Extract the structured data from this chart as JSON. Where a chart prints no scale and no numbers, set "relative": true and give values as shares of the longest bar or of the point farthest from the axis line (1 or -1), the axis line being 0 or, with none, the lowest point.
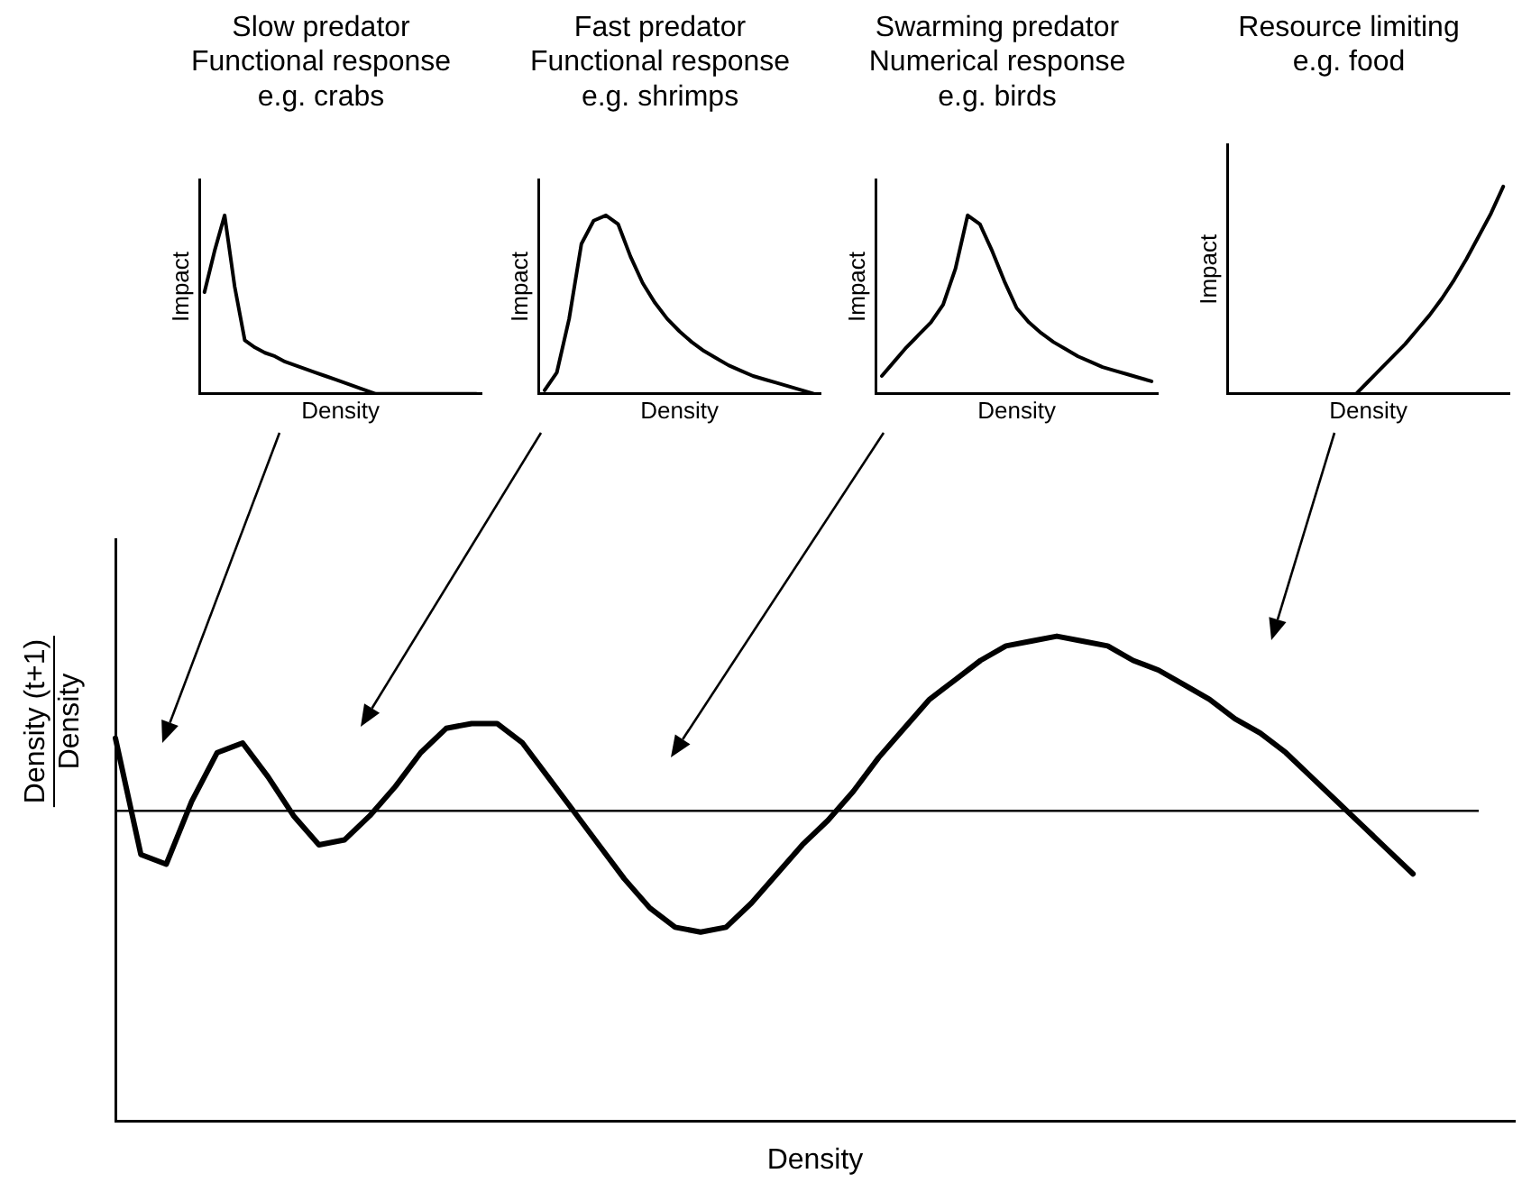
{
  "chart_data": [
    {
      "type": "line",
      "title": "Slow predator\nFunctional response\ne.g. crabs",
      "xlabel": "Density",
      "ylabel": "Impact",
      "relative": true,
      "grid": false,
      "legend": false,
      "marker": "none",
      "color": "#000000",
      "categories": [
        null,
        null,
        null,
        null,
        null,
        null,
        null,
        null,
        null,
        null,
        null,
        null,
        null,
        null,
        null,
        null,
        null,
        null,
        null,
        null,
        null,
        null,
        null,
        null,
        null,
        null,
        null,
        null
      ],
      "values": [
        0.57,
        0.8,
        1,
        0.6,
        0.3,
        0.26,
        0.23,
        0.21,
        0.18,
        0.16,
        0.14,
        0.12,
        0.1,
        0.08,
        0.06,
        0.04,
        0.02,
        0,
        0,
        0,
        0,
        0,
        0,
        0,
        0,
        0,
        0,
        0
      ]
    },
    {
      "type": "line",
      "title": "Fast predator\nFunctional response\ne.g. shrimps",
      "xlabel": "Density",
      "ylabel": "Impact",
      "relative": true,
      "grid": false,
      "legend": false,
      "marker": "none",
      "color": "#000000",
      "categories": [
        null,
        null,
        null,
        null,
        null,
        null,
        null,
        null,
        null,
        null,
        null,
        null,
        null,
        null,
        null,
        null,
        null,
        null,
        null,
        null,
        null,
        null,
        null
      ],
      "values": [
        0.02,
        0.12,
        0.42,
        0.84,
        0.97,
        1,
        0.95,
        0.77,
        0.62,
        0.51,
        0.42,
        0.35,
        0.29,
        0.24,
        0.2,
        0.16,
        0.13,
        0.1,
        0.08,
        0.06,
        0.04,
        0.02,
        0
      ]
    },
    {
      "type": "line",
      "title": "Swarming predator\nNumerical response\ne.g. birds",
      "xlabel": "Density",
      "ylabel": "Impact",
      "relative": true,
      "grid": false,
      "legend": false,
      "marker": "none",
      "color": "#000000",
      "categories": [
        null,
        null,
        null,
        null,
        null,
        null,
        null,
        null,
        null,
        null,
        null,
        null,
        null,
        null,
        null,
        null,
        null,
        null,
        null,
        null,
        null,
        null,
        null
      ],
      "values": [
        0.1,
        0.18,
        0.26,
        0.33,
        0.4,
        0.5,
        0.7,
        1,
        0.95,
        0.8,
        0.63,
        0.48,
        0.4,
        0.34,
        0.29,
        0.25,
        0.21,
        0.18,
        0.15,
        0.13,
        0.11,
        0.09,
        0.07
      ]
    },
    {
      "type": "line",
      "title": "Resource limiting\ne.g. food",
      "xlabel": "Density",
      "ylabel": "Impact",
      "relative": true,
      "grid": false,
      "legend": false,
      "marker": "none",
      "color": "#000000",
      "categories": [
        null,
        null,
        null,
        null,
        null,
        null,
        null,
        null,
        null,
        null,
        null,
        null,
        null,
        null,
        null,
        null,
        null,
        null,
        null,
        null,
        null,
        null,
        null
      ],
      "values": [
        null,
        null,
        null,
        null,
        null,
        null,
        null,
        null,
        null,
        null,
        0,
        0.06,
        0.12,
        0.18,
        0.24,
        0.31,
        0.38,
        0.46,
        0.55,
        0.65,
        0.76,
        0.87,
        1
      ]
    },
    {
      "type": "line",
      "xlabel": "Density",
      "ylabel": "Density (t+1)\nDensity",
      "relative": true,
      "grid": false,
      "legend": false,
      "marker": "none",
      "color": "#000000",
      "ref_lines": [
        {
          "axis": "y",
          "value": 0.64,
          "color": "#000000"
        }
      ],
      "categories": [
        null,
        null,
        null,
        null,
        null,
        null,
        null,
        null,
        null,
        null,
        null,
        null,
        null,
        null,
        null,
        null,
        null,
        null,
        null,
        null,
        null,
        null,
        null,
        null,
        null,
        null,
        null,
        null,
        null,
        null,
        null,
        null,
        null,
        null,
        null,
        null,
        null,
        null,
        null,
        null,
        null,
        null,
        null,
        null,
        null,
        null,
        null,
        null,
        null,
        null,
        null,
        null,
        null,
        null,
        null,
        null
      ],
      "values": [
        0.79,
        0.55,
        0.53,
        0.66,
        0.76,
        0.78,
        0.71,
        0.63,
        0.57,
        0.58,
        0.63,
        0.69,
        0.76,
        0.81,
        0.82,
        0.82,
        0.78,
        0.71,
        0.64,
        0.57,
        0.5,
        0.44,
        0.4,
        0.39,
        0.4,
        0.45,
        0.51,
        0.57,
        0.62,
        0.68,
        0.75,
        0.81,
        0.87,
        0.91,
        0.95,
        0.98,
        0.99,
        1,
        0.99,
        0.98,
        0.95,
        0.93,
        0.9,
        0.87,
        0.83,
        0.8,
        0.76,
        0.71,
        0.66,
        0.61,
        0.56,
        0.51,
        null,
        null,
        null,
        null
      ]
    }
  ]
}
